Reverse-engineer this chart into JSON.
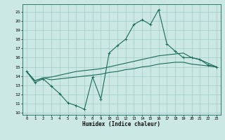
{
  "xlabel": "Humidex (Indice chaleur)",
  "xlim": [
    -0.5,
    23.5
  ],
  "ylim": [
    9.8,
    21.8
  ],
  "yticks": [
    10,
    11,
    12,
    13,
    14,
    15,
    16,
    17,
    18,
    19,
    20,
    21
  ],
  "xticks": [
    0,
    1,
    2,
    3,
    4,
    5,
    6,
    7,
    8,
    9,
    10,
    11,
    12,
    13,
    14,
    15,
    16,
    17,
    18,
    19,
    20,
    21,
    22,
    23
  ],
  "bg_color": "#cce8e4",
  "grid_color": "#a0ccc8",
  "line_color": "#1a6b5a",
  "line1_x": [
    0,
    1,
    2,
    3,
    4,
    5,
    6,
    7,
    8,
    9,
    10,
    11,
    12,
    13,
    14,
    15,
    16,
    17,
    18,
    19,
    20,
    21,
    22,
    23
  ],
  "line1_y": [
    14.5,
    13.3,
    13.7,
    12.9,
    12.1,
    11.1,
    10.8,
    10.4,
    13.9,
    11.5,
    16.5,
    17.3,
    18.0,
    19.6,
    20.1,
    19.6,
    21.2,
    17.5,
    16.7,
    16.0,
    16.0,
    15.8,
    15.2,
    15.0
  ],
  "line2_x": [
    0,
    1,
    2,
    3,
    4,
    5,
    6,
    7,
    8,
    9,
    10,
    11,
    12,
    13,
    14,
    15,
    16,
    17,
    18,
    19,
    20,
    21,
    22,
    23
  ],
  "line2_y": [
    14.5,
    13.5,
    13.8,
    13.9,
    14.1,
    14.3,
    14.5,
    14.6,
    14.7,
    14.8,
    15.0,
    15.2,
    15.4,
    15.6,
    15.8,
    16.0,
    16.2,
    16.3,
    16.4,
    16.5,
    16.0,
    15.8,
    15.4,
    15.0
  ],
  "line3_x": [
    0,
    1,
    2,
    3,
    4,
    5,
    6,
    7,
    8,
    9,
    10,
    11,
    12,
    13,
    14,
    15,
    16,
    17,
    18,
    19,
    20,
    21,
    22,
    23
  ],
  "line3_y": [
    14.5,
    13.5,
    13.8,
    13.6,
    13.7,
    13.8,
    13.9,
    14.0,
    14.1,
    14.2,
    14.4,
    14.5,
    14.7,
    14.8,
    15.0,
    15.1,
    15.3,
    15.4,
    15.5,
    15.5,
    15.3,
    15.2,
    15.1,
    15.0
  ]
}
